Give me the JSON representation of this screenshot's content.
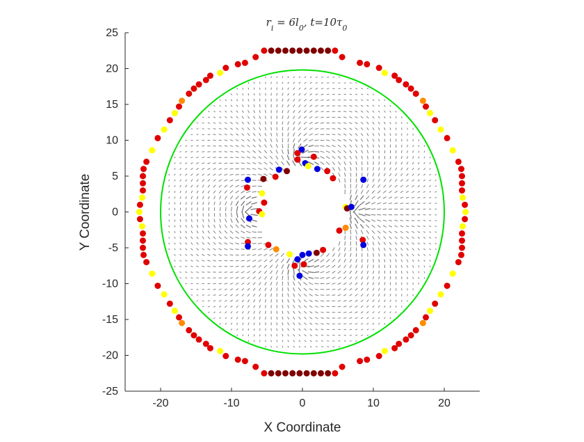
{
  "chart_data": {
    "type": "scatter",
    "title": "r_i = 6l_0, t=10τ_0",
    "xlabel": "X Coordinate",
    "ylabel": "Y Coordinate",
    "xlim": [
      -25,
      25
    ],
    "ylim": [
      -25,
      25
    ],
    "xticks": [
      -20,
      -10,
      0,
      10,
      20
    ],
    "yticks": [
      -25,
      -20,
      -15,
      -10,
      -5,
      0,
      5,
      10,
      15,
      20,
      25
    ],
    "grid": false,
    "legend": "none",
    "colors": {
      "boundary": "#00e000",
      "quiver": "#7f7f7f",
      "axis": "#262626",
      "particle_dark": "#7f0000",
      "particle_red": "#e00000",
      "particle_orange": "#ff8c00",
      "particle_yellow": "#ffff00",
      "particle_blue": "#0000e0"
    },
    "boundary_circle": {
      "center": [
        0,
        0
      ],
      "radius": 20
    },
    "quiver_field": {
      "domain_radius": 20,
      "inner_radius": 6,
      "defect_count": 4,
      "spacing": 0.8
    },
    "outer_particles": [
      {
        "x": -4.4,
        "y": 22.5,
        "c": "dark"
      },
      {
        "x": -3.4,
        "y": 22.5,
        "c": "dark"
      },
      {
        "x": -2.4,
        "y": 22.5,
        "c": "dark"
      },
      {
        "x": -1.4,
        "y": 22.5,
        "c": "dark"
      },
      {
        "x": -0.4,
        "y": 22.5,
        "c": "dark"
      },
      {
        "x": 0.6,
        "y": 22.5,
        "c": "dark"
      },
      {
        "x": 1.6,
        "y": 22.5,
        "c": "dark"
      },
      {
        "x": 2.6,
        "y": 22.5,
        "c": "dark"
      },
      {
        "x": 3.6,
        "y": 22.5,
        "c": "dark"
      },
      {
        "x": -5.4,
        "y": 22.5,
        "c": "red"
      },
      {
        "x": 4.6,
        "y": 22.5,
        "c": "red"
      },
      {
        "x": -4.4,
        "y": -22.5,
        "c": "dark"
      },
      {
        "x": -3.4,
        "y": -22.5,
        "c": "dark"
      },
      {
        "x": -2.4,
        "y": -22.5,
        "c": "dark"
      },
      {
        "x": -1.4,
        "y": -22.5,
        "c": "dark"
      },
      {
        "x": -0.4,
        "y": -22.5,
        "c": "dark"
      },
      {
        "x": 0.6,
        "y": -22.5,
        "c": "dark"
      },
      {
        "x": 1.6,
        "y": -22.5,
        "c": "dark"
      },
      {
        "x": 2.6,
        "y": -22.5,
        "c": "dark"
      },
      {
        "x": 3.6,
        "y": -22.5,
        "c": "dark"
      },
      {
        "x": -5.4,
        "y": -22.5,
        "c": "red"
      },
      {
        "x": 4.6,
        "y": -22.5,
        "c": "red"
      },
      {
        "x": -6.6,
        "y": -21.6,
        "c": "red"
      },
      {
        "x": 5.6,
        "y": -21.6,
        "c": "red"
      },
      {
        "x": -6.6,
        "y": 21.6,
        "c": "red"
      },
      {
        "x": 5.6,
        "y": 21.6,
        "c": "red"
      },
      {
        "x": -8.1,
        "y": 20.8,
        "c": "red"
      },
      {
        "x": -9.1,
        "y": 20.6,
        "c": "red"
      },
      {
        "x": -10.8,
        "y": 20.1,
        "c": "red"
      },
      {
        "x": -11.6,
        "y": 19.4,
        "c": "yellow"
      },
      {
        "x": 8.1,
        "y": 20.8,
        "c": "red"
      },
      {
        "x": 9.1,
        "y": 20.6,
        "c": "red"
      },
      {
        "x": 10.8,
        "y": 20.1,
        "c": "red"
      },
      {
        "x": 11.6,
        "y": 19.4,
        "c": "yellow"
      },
      {
        "x": -8.1,
        "y": -20.8,
        "c": "red"
      },
      {
        "x": -9.1,
        "y": -20.6,
        "c": "red"
      },
      {
        "x": -10.8,
        "y": -20.1,
        "c": "red"
      },
      {
        "x": -11.6,
        "y": -19.4,
        "c": "yellow"
      },
      {
        "x": 8.1,
        "y": -20.8,
        "c": "red"
      },
      {
        "x": 9.1,
        "y": -20.6,
        "c": "red"
      },
      {
        "x": 10.8,
        "y": -20.1,
        "c": "red"
      },
      {
        "x": 11.6,
        "y": -19.4,
        "c": "yellow"
      },
      {
        "x": -13.0,
        "y": 19.0,
        "c": "red"
      },
      {
        "x": -13.6,
        "y": 18.4,
        "c": "red"
      },
      {
        "x": -14.6,
        "y": 17.8,
        "c": "red"
      },
      {
        "x": -15.3,
        "y": 17.2,
        "c": "red"
      },
      {
        "x": -16.0,
        "y": 16.5,
        "c": "red"
      },
      {
        "x": -17.0,
        "y": 15.5,
        "c": "orange"
      },
      {
        "x": -17.4,
        "y": 14.7,
        "c": "red"
      },
      {
        "x": -18.0,
        "y": 13.8,
        "c": "yellow"
      },
      {
        "x": -18.7,
        "y": 12.8,
        "c": "red"
      },
      {
        "x": -19.5,
        "y": 11.5,
        "c": "yellow"
      },
      {
        "x": -20.4,
        "y": 10.3,
        "c": "red"
      },
      {
        "x": -21.2,
        "y": 8.6,
        "c": "yellow"
      },
      {
        "x": 13.0,
        "y": 19.0,
        "c": "red"
      },
      {
        "x": 13.6,
        "y": 18.4,
        "c": "red"
      },
      {
        "x": 14.6,
        "y": 17.8,
        "c": "red"
      },
      {
        "x": 15.3,
        "y": 17.2,
        "c": "red"
      },
      {
        "x": 16.0,
        "y": 16.5,
        "c": "red"
      },
      {
        "x": 17.0,
        "y": 15.5,
        "c": "orange"
      },
      {
        "x": 17.4,
        "y": 14.7,
        "c": "red"
      },
      {
        "x": 18.0,
        "y": 13.8,
        "c": "yellow"
      },
      {
        "x": 18.7,
        "y": 12.8,
        "c": "red"
      },
      {
        "x": 19.5,
        "y": 11.5,
        "c": "yellow"
      },
      {
        "x": 20.4,
        "y": 10.3,
        "c": "red"
      },
      {
        "x": 21.2,
        "y": 8.6,
        "c": "yellow"
      },
      {
        "x": -13.0,
        "y": -19.0,
        "c": "red"
      },
      {
        "x": -13.6,
        "y": -18.4,
        "c": "red"
      },
      {
        "x": -14.6,
        "y": -17.8,
        "c": "red"
      },
      {
        "x": -15.3,
        "y": -17.2,
        "c": "red"
      },
      {
        "x": -16.0,
        "y": -16.5,
        "c": "red"
      },
      {
        "x": -17.0,
        "y": -15.5,
        "c": "orange"
      },
      {
        "x": -17.4,
        "y": -14.7,
        "c": "red"
      },
      {
        "x": -18.0,
        "y": -13.8,
        "c": "yellow"
      },
      {
        "x": -18.7,
        "y": -12.8,
        "c": "red"
      },
      {
        "x": -19.5,
        "y": -11.5,
        "c": "yellow"
      },
      {
        "x": -20.4,
        "y": -10.3,
        "c": "red"
      },
      {
        "x": -21.2,
        "y": -8.6,
        "c": "yellow"
      },
      {
        "x": 13.0,
        "y": -19.0,
        "c": "red"
      },
      {
        "x": 13.6,
        "y": -18.4,
        "c": "red"
      },
      {
        "x": 14.6,
        "y": -17.8,
        "c": "red"
      },
      {
        "x": 15.3,
        "y": -17.2,
        "c": "red"
      },
      {
        "x": 16.0,
        "y": -16.5,
        "c": "red"
      },
      {
        "x": 17.0,
        "y": -15.5,
        "c": "orange"
      },
      {
        "x": 17.4,
        "y": -14.7,
        "c": "red"
      },
      {
        "x": 18.0,
        "y": -13.8,
        "c": "yellow"
      },
      {
        "x": 18.7,
        "y": -12.8,
        "c": "red"
      },
      {
        "x": 19.5,
        "y": -11.5,
        "c": "yellow"
      },
      {
        "x": 20.4,
        "y": -10.3,
        "c": "red"
      },
      {
        "x": 21.2,
        "y": -8.6,
        "c": "yellow"
      },
      {
        "x": -22.0,
        "y": 7.0,
        "c": "red"
      },
      {
        "x": -22.4,
        "y": 6.0,
        "c": "red"
      },
      {
        "x": -22.5,
        "y": 5.0,
        "c": "red"
      },
      {
        "x": -22.5,
        "y": 4.0,
        "c": "red"
      },
      {
        "x": -22.5,
        "y": 3.0,
        "c": "red"
      },
      {
        "x": -22.6,
        "y": 2.0,
        "c": "yellow"
      },
      {
        "x": -22.9,
        "y": 1.0,
        "c": "red"
      },
      {
        "x": -23.0,
        "y": 0.0,
        "c": "yellow"
      },
      {
        "x": -22.9,
        "y": -1.0,
        "c": "red"
      },
      {
        "x": -22.6,
        "y": -2.0,
        "c": "yellow"
      },
      {
        "x": -22.5,
        "y": -3.0,
        "c": "red"
      },
      {
        "x": -22.5,
        "y": -4.0,
        "c": "red"
      },
      {
        "x": -22.5,
        "y": -5.0,
        "c": "red"
      },
      {
        "x": -22.4,
        "y": -6.0,
        "c": "red"
      },
      {
        "x": -22.0,
        "y": -7.0,
        "c": "red"
      },
      {
        "x": 22.0,
        "y": 7.0,
        "c": "red"
      },
      {
        "x": 22.4,
        "y": 6.0,
        "c": "red"
      },
      {
        "x": 22.5,
        "y": 5.0,
        "c": "red"
      },
      {
        "x": 22.5,
        "y": 4.0,
        "c": "red"
      },
      {
        "x": 22.5,
        "y": 3.0,
        "c": "red"
      },
      {
        "x": 22.6,
        "y": 2.0,
        "c": "yellow"
      },
      {
        "x": 22.9,
        "y": 1.0,
        "c": "red"
      },
      {
        "x": 23.0,
        "y": 0.0,
        "c": "yellow"
      },
      {
        "x": 22.9,
        "y": -1.0,
        "c": "red"
      },
      {
        "x": 22.6,
        "y": -2.0,
        "c": "yellow"
      },
      {
        "x": 22.5,
        "y": -3.0,
        "c": "red"
      },
      {
        "x": 22.5,
        "y": -4.0,
        "c": "red"
      },
      {
        "x": 22.5,
        "y": -5.0,
        "c": "red"
      },
      {
        "x": 22.4,
        "y": -6.0,
        "c": "red"
      },
      {
        "x": 22.0,
        "y": -7.0,
        "c": "red"
      }
    ],
    "inner_particles": [
      {
        "x": -0.1,
        "y": 8.7,
        "c": "blue"
      },
      {
        "x": 0.4,
        "y": 6.8,
        "c": "blue"
      },
      {
        "x": -0.7,
        "y": 7.3,
        "c": "red"
      },
      {
        "x": 0.8,
        "y": 6.4,
        "c": "yellow"
      },
      {
        "x": 1.6,
        "y": 7.7,
        "c": "red"
      },
      {
        "x": -0.4,
        "y": -8.9,
        "c": "blue"
      },
      {
        "x": -0.7,
        "y": -6.6,
        "c": "blue"
      },
      {
        "x": 0.0,
        "y": -6.0,
        "c": "blue"
      },
      {
        "x": -1.1,
        "y": -7.5,
        "c": "red"
      },
      {
        "x": 0.2,
        "y": -7.3,
        "c": "red"
      },
      {
        "x": 0.9,
        "y": -5.8,
        "c": "blue"
      },
      {
        "x": 2.0,
        "y": -5.7,
        "c": "dark"
      },
      {
        "x": 2.9,
        "y": -5.3,
        "c": "red"
      },
      {
        "x": -1.8,
        "y": -5.9,
        "c": "yellow"
      },
      {
        "x": -7.7,
        "y": 4.5,
        "c": "blue"
      },
      {
        "x": -7.8,
        "y": 3.4,
        "c": "red"
      },
      {
        "x": -5.5,
        "y": 4.6,
        "c": "dark"
      },
      {
        "x": -5.7,
        "y": 2.6,
        "c": "yellow"
      },
      {
        "x": -5.4,
        "y": 1.3,
        "c": "red"
      },
      {
        "x": -6.1,
        "y": 0.1,
        "c": "red"
      },
      {
        "x": -5.7,
        "y": -0.3,
        "c": "yellow"
      },
      {
        "x": -7.5,
        "y": -0.9,
        "c": "blue"
      },
      {
        "x": -7.7,
        "y": -4.2,
        "c": "red"
      },
      {
        "x": -7.7,
        "y": -4.8,
        "c": "blue"
      },
      {
        "x": -4.8,
        "y": -4.6,
        "c": "red"
      },
      {
        "x": -3.7,
        "y": -5.2,
        "c": "orange"
      },
      {
        "x": -3.8,
        "y": 4.9,
        "c": "red"
      },
      {
        "x": -3.3,
        "y": 5.9,
        "c": "blue"
      },
      {
        "x": -2.2,
        "y": 5.7,
        "c": "dark"
      },
      {
        "x": -0.7,
        "y": 8.2,
        "c": "red"
      },
      {
        "x": 2.1,
        "y": 6.0,
        "c": "blue"
      },
      {
        "x": 3.5,
        "y": 5.7,
        "c": "red"
      },
      {
        "x": 4.3,
        "y": 4.7,
        "c": "red"
      },
      {
        "x": 8.6,
        "y": 4.5,
        "c": "blue"
      },
      {
        "x": 6.1,
        "y": 0.7,
        "c": "yellow"
      },
      {
        "x": 6.3,
        "y": 0.5,
        "c": "dark"
      },
      {
        "x": 6.9,
        "y": 0.7,
        "c": "blue"
      },
      {
        "x": 6.1,
        "y": -2.2,
        "c": "orange"
      },
      {
        "x": 5.2,
        "y": -2.6,
        "c": "red"
      },
      {
        "x": 8.5,
        "y": -3.9,
        "c": "red"
      },
      {
        "x": 8.6,
        "y": -4.6,
        "c": "blue"
      }
    ]
  }
}
